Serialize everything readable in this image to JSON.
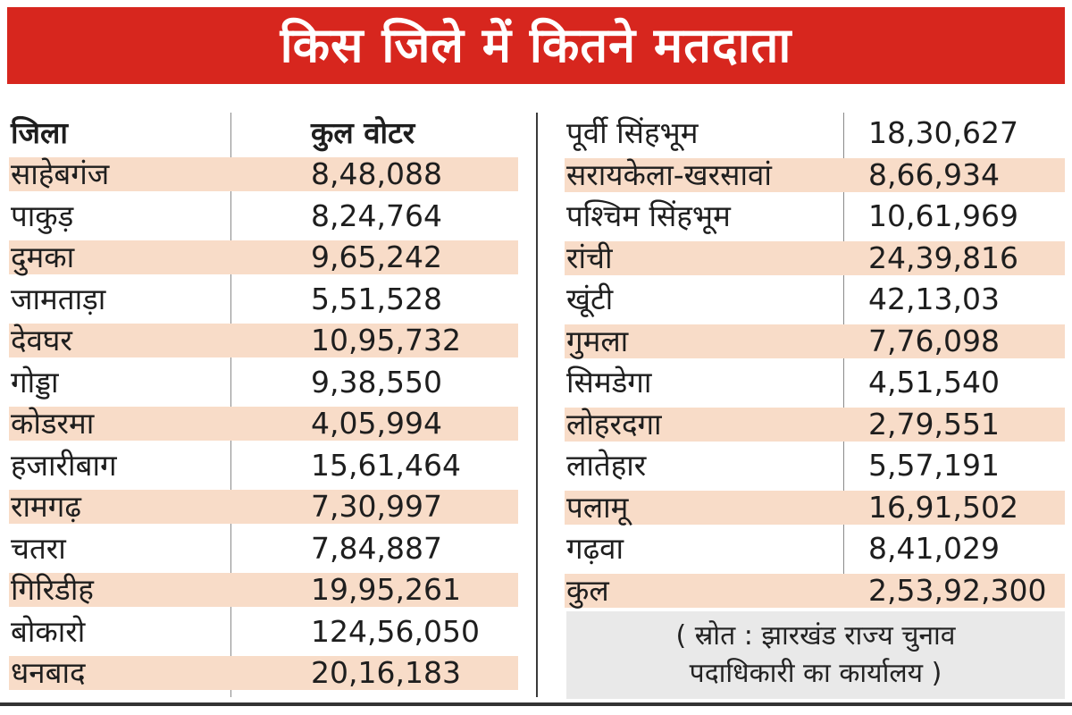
{
  "title": "किस जिले में कितने मतदाता",
  "headers": {
    "district": "जिला",
    "voters": "कुल वोटर"
  },
  "left_rows": [
    {
      "district": "साहेबगंज",
      "voters": "8,48,088"
    },
    {
      "district": "पाकुड़",
      "voters": "8,24,764"
    },
    {
      "district": "दुमका",
      "voters": "9,65,242"
    },
    {
      "district": "जामताड़ा",
      "voters": "5,51,528"
    },
    {
      "district": "देवघर",
      "voters": "10,95,732"
    },
    {
      "district": "गोड्डा",
      "voters": "9,38,550"
    },
    {
      "district": "कोडरमा",
      "voters": "4,05,994"
    },
    {
      "district": "हजारीबाग",
      "voters": "15,61,464"
    },
    {
      "district": "रामगढ़",
      "voters": "7,30,997"
    },
    {
      "district": "चतरा",
      "voters": "7,84,887"
    },
    {
      "district": "गिरिडीह",
      "voters": "19,95,261"
    },
    {
      "district": "बोकारो",
      "voters": "124,56,050"
    },
    {
      "district": "धनबाद",
      "voters": "20,16,183"
    }
  ],
  "right_rows": [
    {
      "district": "पूर्वी सिंहभूम",
      "voters": "18,30,627"
    },
    {
      "district": "सरायकेला-खरसावां",
      "voters": "8,66,934"
    },
    {
      "district": "पश्चिम सिंहभूम",
      "voters": "10,61,969"
    },
    {
      "district": "रांची",
      "voters": "24,39,816"
    },
    {
      "district": "खूंटी",
      "voters": "42,13,03"
    },
    {
      "district": "गुमला",
      "voters": "7,76,098"
    },
    {
      "district": "सिमडेगा",
      "voters": "4,51,540"
    },
    {
      "district": "लोहरदगा",
      "voters": "2,79,551"
    },
    {
      "district": "लातेहार",
      "voters": "5,57,191"
    },
    {
      "district": "पलामू",
      "voters": "16,91,502"
    },
    {
      "district": "गढ़वा",
      "voters": "8,41,029"
    },
    {
      "district": "कुल",
      "voters": "2,53,92,300"
    }
  ],
  "source": {
    "line1": "( स्रोत : झारखंड राज्य चुनाव",
    "line2": "पदाधिकारी का कार्यालय )"
  },
  "colors": {
    "banner": "#d7261e",
    "row_shade": "#f8dcc8",
    "source_bg": "#e9e9e9"
  }
}
